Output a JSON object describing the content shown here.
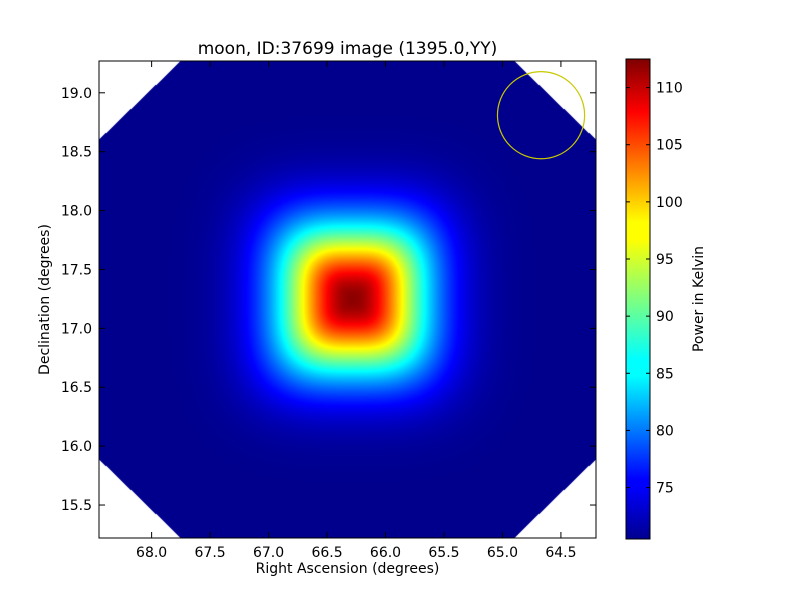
{
  "chart_data": {
    "type": "heatmap",
    "title": "moon, ID:37699 image (1395.0,YY)",
    "xlabel": "Right Ascension (degrees)",
    "ylabel": "Declination (degrees)",
    "xlim": [
      68.45,
      64.2
    ],
    "ylim": [
      15.22,
      19.27
    ],
    "x_ticks": [
      68.0,
      67.5,
      67.0,
      66.5,
      66.0,
      65.5,
      65.0,
      64.5
    ],
    "x_tick_labels": [
      "68.0",
      "67.5",
      "67.0",
      "66.5",
      "66.0",
      "65.5",
      "65.0",
      "64.5"
    ],
    "y_ticks": [
      15.5,
      16.0,
      16.5,
      17.0,
      17.5,
      18.0,
      18.5,
      19.0
    ],
    "y_tick_labels": [
      "15.5",
      "16.0",
      "16.5",
      "17.0",
      "17.5",
      "18.0",
      "18.5",
      "19.0"
    ],
    "colormap": "jet",
    "colorbar": {
      "label": "Power in Kelvin",
      "vmin": 70.5,
      "vmax": 112.5,
      "ticks": [
        75,
        80,
        85,
        90,
        95,
        100,
        105,
        110
      ],
      "tick_labels": [
        "75",
        "80",
        "85",
        "90",
        "95",
        "100",
        "105",
        "110"
      ]
    },
    "peak": {
      "ra": 66.28,
      "dec": 17.25,
      "value": 112.0
    },
    "background_value": 71.0,
    "source_extent_deg": 0.62,
    "beam_circle": {
      "ra": 64.67,
      "dec": 18.81,
      "radius_deg": 0.37,
      "color": "#c8c800"
    },
    "masked_corners": true,
    "grid": false
  }
}
